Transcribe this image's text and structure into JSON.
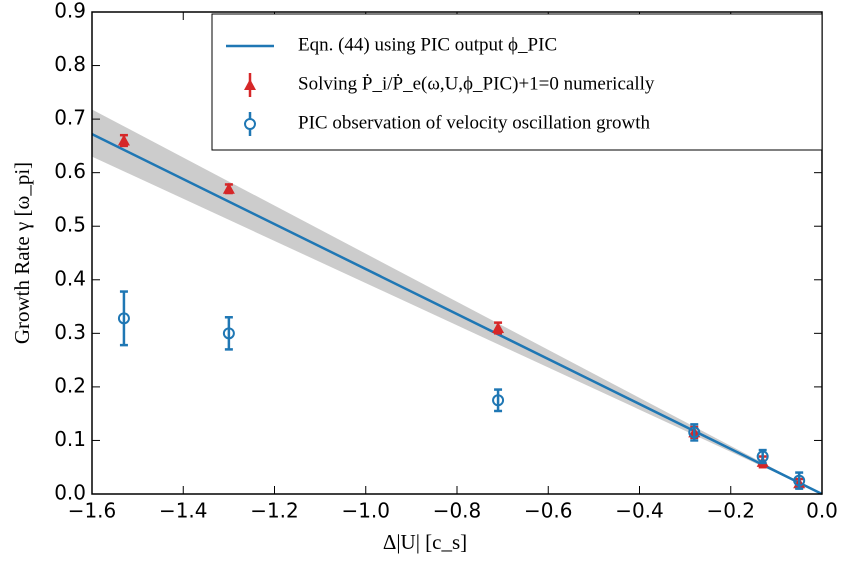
{
  "chart_data": {
    "type": "line",
    "xlabel": "Δ|U| [c_s]",
    "ylabel": "Growth Rate γ [ω_pi]",
    "xlim": [
      -1.6,
      0
    ],
    "ylim": [
      0,
      0.9
    ],
    "xticks": [
      {
        "value": -1.6,
        "label": "−1.6"
      },
      {
        "value": -1.4,
        "label": "−1.4"
      },
      {
        "value": -1.2,
        "label": "−1.2"
      },
      {
        "value": -1.0,
        "label": "−1.0"
      },
      {
        "value": -0.8,
        "label": "−0.8"
      },
      {
        "value": -0.6,
        "label": "−0.6"
      },
      {
        "value": -0.4,
        "label": "−0.4"
      },
      {
        "value": -0.2,
        "label": "−0.2"
      },
      {
        "value": 0,
        "label": "0.0"
      }
    ],
    "yticks": [
      {
        "value": 0,
        "label": "0.0"
      },
      0.1,
      0.2,
      0.3,
      0.4,
      0.5,
      0.6,
      0.7,
      0.8,
      0.9
    ],
    "band": {
      "x": [
        -1.6,
        0
      ],
      "lower": [
        0.63,
        0
      ],
      "upper": [
        0.718,
        0
      ],
      "color": "#cccccc"
    },
    "series": [
      {
        "name": "Eqn. (44) using PIC output ϕ_PIC",
        "color": "#1f77b4",
        "marker": "none",
        "x": [
          -1.6,
          0
        ],
        "values": [
          0.672,
          0
        ]
      },
      {
        "name": "Solving Ṗ_i/Ṗ_e(ω,U,ϕ_PIC)+1=0 numerically",
        "color": "#d62728",
        "marker": "triangle",
        "x": [
          -1.53,
          -1.3,
          -0.71,
          -0.28,
          -0.13,
          -0.05
        ],
        "values": [
          0.66,
          0.57,
          0.31,
          0.115,
          0.06,
          0.02
        ],
        "errors": [
          0.01,
          0.008,
          0.01,
          0.01,
          0.01,
          0.008
        ]
      },
      {
        "name": "PIC observation of velocity oscillation growth",
        "color": "#1f77b4",
        "marker": "circle",
        "x": [
          -1.53,
          -1.3,
          -0.71,
          -0.28,
          -0.13,
          -0.05
        ],
        "values": [
          0.328,
          0.3,
          0.175,
          0.115,
          0.07,
          0.025
        ],
        "errors": [
          0.05,
          0.03,
          0.02,
          0.015,
          0.012,
          0.015
        ]
      }
    ],
    "legend": "upper right"
  }
}
